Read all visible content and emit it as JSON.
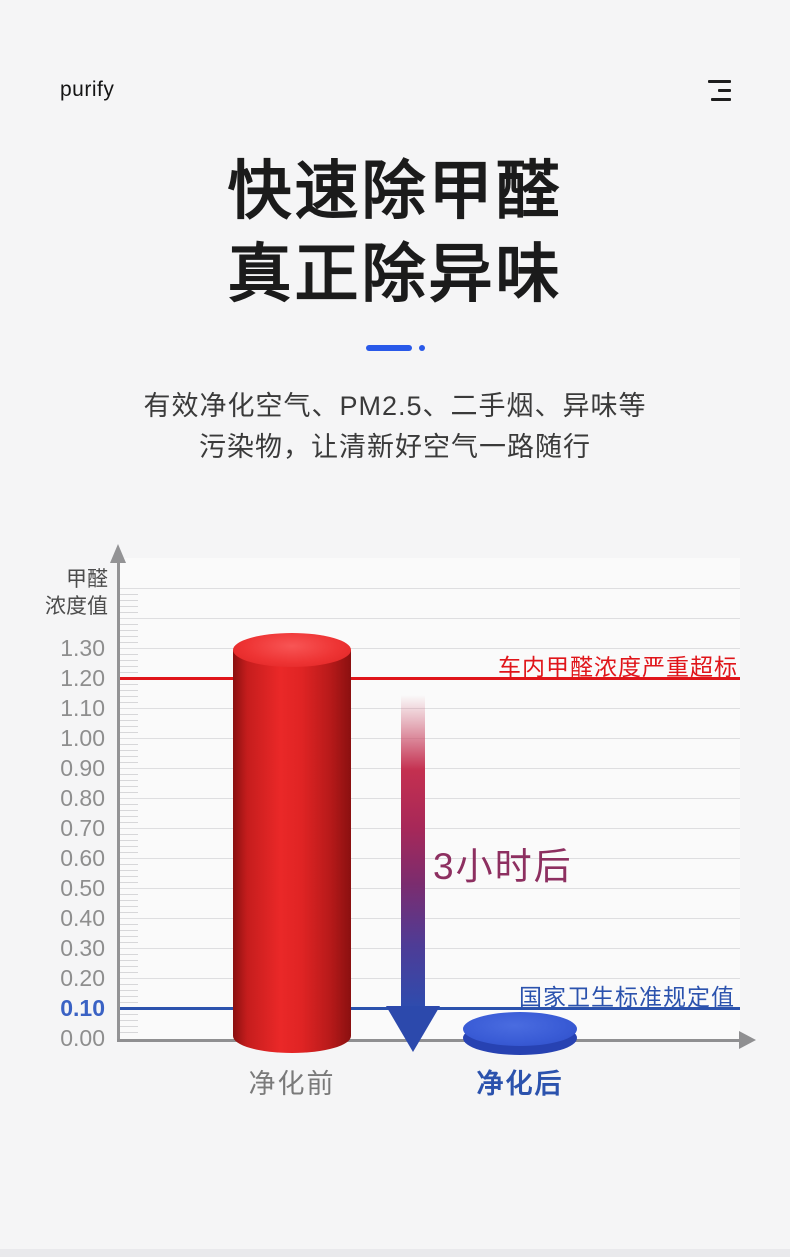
{
  "header": {
    "brand": "purify"
  },
  "icons": {
    "menu": "hamburger-menu-icon"
  },
  "hero": {
    "title_line1": "快速除甲醛",
    "title_line2": "真正除异味",
    "subtitle_line1": "有效净化空气、PM2.5、二手烟、异味等",
    "subtitle_line2": "污染物，让清新好空气一路随行",
    "accent_color": "#2959e9"
  },
  "chart_data": {
    "type": "bar",
    "title": "",
    "ylabel": "甲醛浓度值",
    "ylabel_lines": [
      "甲醛",
      "浓度值"
    ],
    "categories": [
      "净化前",
      "净化后"
    ],
    "values": [
      1.35,
      0.03
    ],
    "bar_colors": [
      "#e02424",
      "#3356d0"
    ],
    "ylim": [
      0,
      1.5
    ],
    "ytick_step": 0.1,
    "minor_tick_step": 0.02,
    "ytick_labels": [
      "0.00",
      "0.10",
      "0.20",
      "0.30",
      "0.40",
      "0.50",
      "0.60",
      "0.70",
      "0.80",
      "0.90",
      "1.00",
      "1.10",
      "1.20",
      "1.30"
    ],
    "highlight_tick": "0.10",
    "highlight_tick_color": "#3a62c4",
    "tick_color": "#8e8e8e",
    "grid": true,
    "legend_position": "none",
    "thresholds": [
      {
        "value": 1.2,
        "label": "车内甲醛浓度严重超标",
        "color": "#e0151a"
      },
      {
        "value": 0.1,
        "label": "国家卫生标准规定值",
        "color": "#2b52ad"
      }
    ],
    "annotation": {
      "text": "3小时后",
      "color": "#8d2f60"
    }
  }
}
